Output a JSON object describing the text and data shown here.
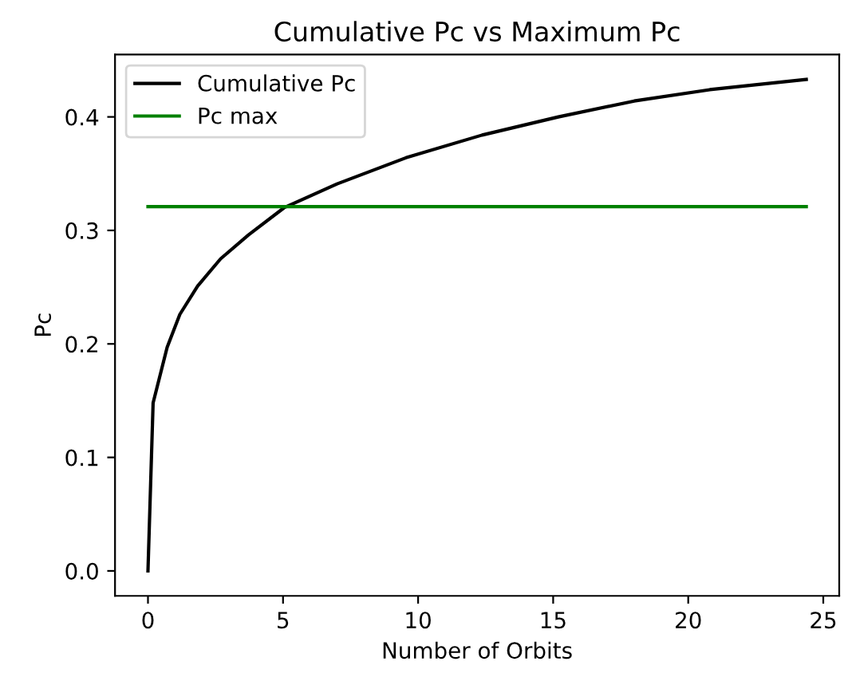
{
  "chart_data": {
    "type": "line",
    "title": "Cumulative Pc vs Maximum Pc",
    "xlabel": "Number of Orbits",
    "ylabel": "Pc",
    "series": [
      {
        "name": "Cumulative Pc",
        "color": "#000000",
        "x": [
          0,
          0.19,
          0.71,
          1.18,
          1.84,
          2.69,
          3.72,
          5.04,
          7.0,
          9.55,
          12.37,
          15.19,
          18.0,
          20.8,
          24.37
        ],
        "values": [
          0,
          0.148,
          0.197,
          0.226,
          0.251,
          0.275,
          0.296,
          0.32,
          0.341,
          0.364,
          0.384,
          0.4,
          0.414,
          0.424,
          0.433
        ]
      },
      {
        "name": "Pc max",
        "color": "#008000",
        "x": [
          0,
          24.37
        ],
        "values": [
          0.321,
          0.321
        ]
      }
    ],
    "xlim": [
      -1.22,
      25.59
    ],
    "ylim": [
      -0.022,
      0.455
    ],
    "xticks": [
      0,
      5,
      10,
      15,
      20,
      25
    ],
    "yticks": [
      {
        "value": 0,
        "label": "0.0"
      },
      0.1,
      0.2,
      0.3,
      0.4
    ],
    "legend": "top left",
    "grid": false
  }
}
